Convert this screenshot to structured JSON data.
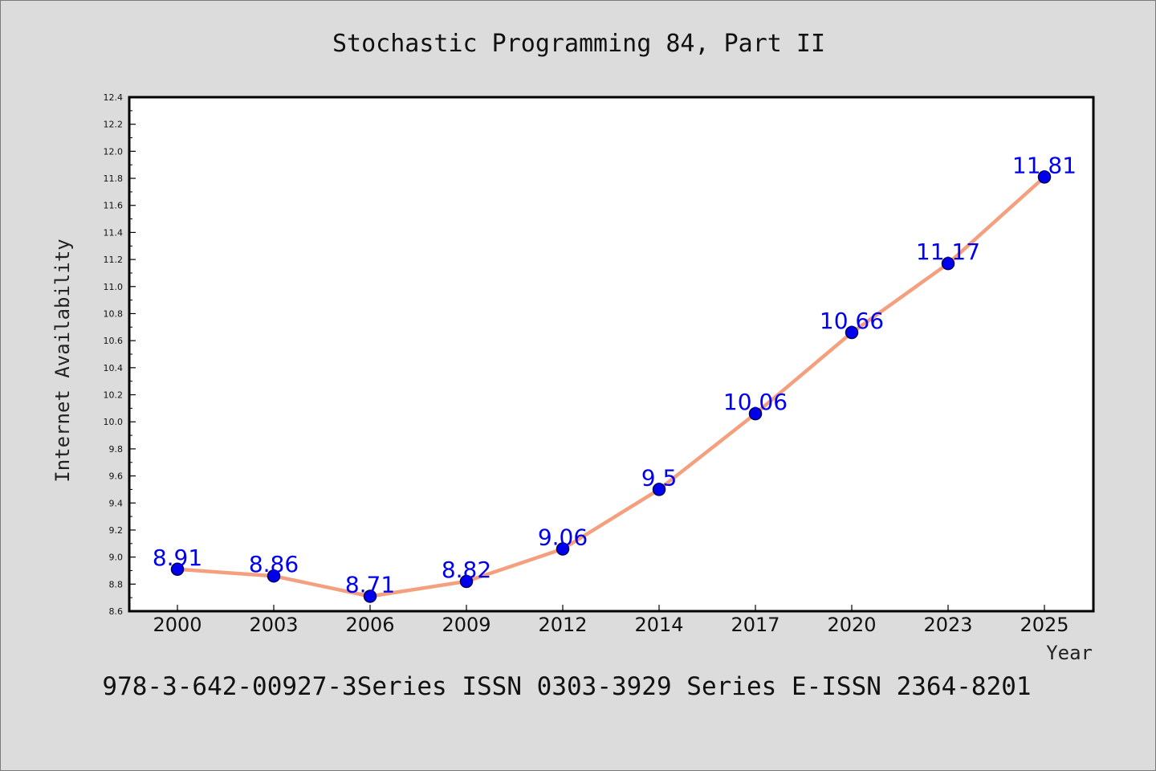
{
  "chart_data": {
    "type": "line",
    "title": "Stochastic Programming 84, Part II",
    "xlabel": "Year",
    "ylabel": "Internet Availability",
    "categories": [
      "2000",
      "2003",
      "2006",
      "2009",
      "2012",
      "2014",
      "2017",
      "2020",
      "2023",
      "2025"
    ],
    "series": [
      {
        "values": [
          8.91,
          8.86,
          8.71,
          8.82,
          9.06,
          9.5,
          10.06,
          10.66,
          11.17,
          11.81
        ],
        "labels": [
          "8.91",
          "8.86",
          "8.71",
          "8.82",
          "9.06",
          "9.5",
          "10.06",
          "10.66",
          "11.17",
          "11.81"
        ]
      }
    ],
    "ylim": [
      8.6,
      12.4
    ],
    "yticks": [
      "8.6",
      "8.8",
      "9.0",
      "9.2",
      "9.4",
      "9.6",
      "9.8",
      "10.0",
      "10.2",
      "10.4",
      "10.6",
      "10.8",
      "11.0",
      "11.2",
      "11.4",
      "11.6",
      "11.8",
      "12.0",
      "12.2",
      "12.4"
    ],
    "grid": false,
    "legend": "none",
    "colors": {
      "line": "#f4a07f",
      "marker_fill": "#0000ee",
      "marker_edge": "#00005a",
      "data_label": "#0000ee",
      "background": "#dcdcdc",
      "plot_background": "#ffffff"
    }
  },
  "footer": {
    "text": "978-3-642-00927-3Series ISSN 0303-3929 Series E-ISSN 2364-8201"
  }
}
